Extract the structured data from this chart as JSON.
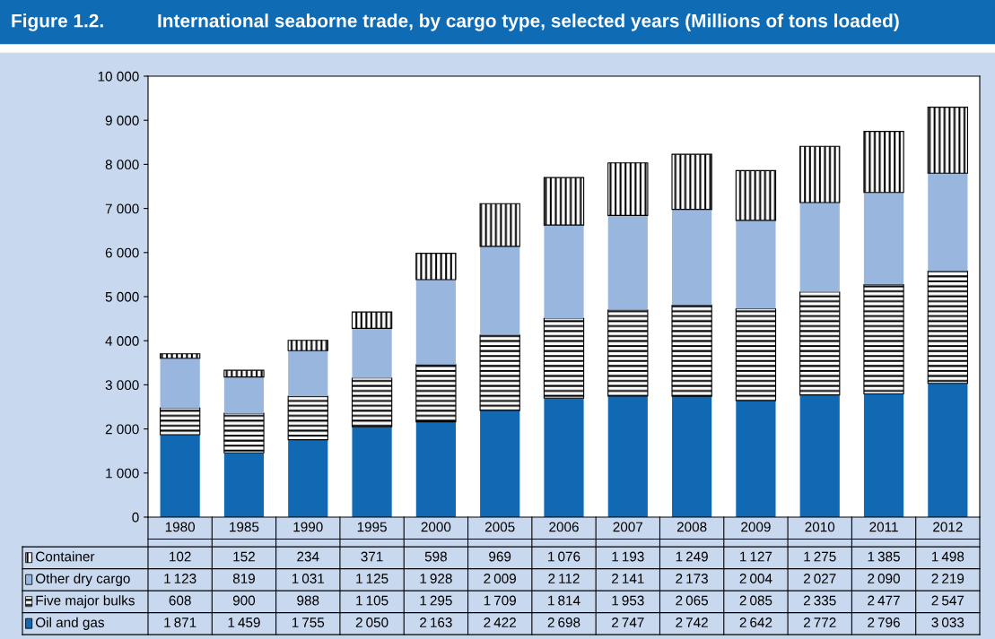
{
  "chart_data": {
    "type": "bar",
    "title": "International seaborne trade, by cargo type, selected years (Millions of tons loaded)",
    "annotations": [
      "Figure 1.2."
    ],
    "categories": [
      "1980",
      "1985",
      "1990",
      "1995",
      "2000",
      "2005",
      "2006",
      "2007",
      "2008",
      "2009",
      "2010",
      "2011",
      "2012"
    ],
    "stacked": true,
    "series": [
      {
        "name": "Oil and gas",
        "color": "#1069b2",
        "values": [
          1871,
          1459,
          1755,
          2050,
          2163,
          2422,
          2698,
          2747,
          2742,
          2642,
          2772,
          2796,
          3033
        ]
      },
      {
        "name": "Five major bulks",
        "color": "#000000",
        "values": [
          608,
          900,
          988,
          1105,
          1295,
          1709,
          1814,
          1953,
          2065,
          2085,
          2335,
          2477,
          2547
        ]
      },
      {
        "name": "Other dry cargo",
        "color": "#98b6de",
        "values": [
          1123,
          819,
          1031,
          1125,
          1928,
          2009,
          2112,
          2141,
          2173,
          2004,
          2027,
          2090,
          2219
        ]
      },
      {
        "name": "Container",
        "color": "#000000",
        "values": [
          102,
          152,
          234,
          371,
          598,
          969,
          1076,
          1193,
          1249,
          1127,
          1275,
          1385,
          1498
        ]
      }
    ],
    "ylim": [
      0,
      10000
    ],
    "yticks": [
      0,
      {
        "value": 1000,
        "label": "1 000"
      },
      {
        "value": 2000,
        "label": "2 000"
      },
      {
        "value": 3000,
        "label": "3 000"
      },
      {
        "value": 4000,
        "label": "4 000"
      },
      {
        "value": 5000,
        "label": "5 000"
      },
      {
        "value": 6000,
        "label": "6 000"
      },
      {
        "value": 7000,
        "label": "7 000"
      },
      {
        "value": 8000,
        "label": "8 000"
      },
      {
        "value": 9000,
        "label": "9 000"
      },
      {
        "value": 10000,
        "label": "10 000"
      }
    ],
    "grid": false,
    "legend": "bottom left",
    "data_labels": true
  }
}
